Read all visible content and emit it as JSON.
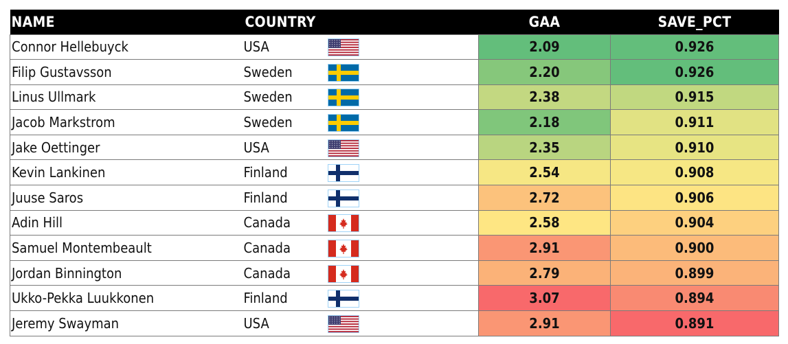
{
  "headers": {
    "name": "NAME",
    "country": "COUNTRY",
    "gaa": "GAA",
    "save_pct": "SAVE_PCT"
  },
  "colors": {
    "header_bg": "#000000",
    "header_text": "#ffffff"
  },
  "rows": [
    {
      "name": "Connor Hellebuyck",
      "country": "USA",
      "flag": "usa-flag-icon",
      "gaa": "2.09",
      "save_pct": "0.926",
      "gaa_color": "#63be7b",
      "save_color": "#63be7b"
    },
    {
      "name": "Filip Gustavsson",
      "country": "Sweden",
      "flag": "sweden-flag-icon",
      "gaa": "2.20",
      "save_pct": "0.926",
      "gaa_color": "#86c77b",
      "save_color": "#63be7b"
    },
    {
      "name": "Linus Ullmark",
      "country": "Sweden",
      "flag": "sweden-flag-icon",
      "gaa": "2.38",
      "save_pct": "0.915",
      "gaa_color": "#c3d881",
      "save_color": "#c1d880"
    },
    {
      "name": "Jacob Markstrom",
      "country": "Sweden",
      "flag": "sweden-flag-icon",
      "gaa": "2.18",
      "save_pct": "0.911",
      "gaa_color": "#80c67b",
      "save_color": "#e1e283"
    },
    {
      "name": "Jake Oettinger",
      "country": "USA",
      "flag": "usa-flag-icon",
      "gaa": "2.35",
      "save_pct": "0.910",
      "gaa_color": "#b9d580",
      "save_color": "#e7e483"
    },
    {
      "name": "Kevin Lankinen",
      "country": "Finland",
      "flag": "finland-flag-icon",
      "gaa": "2.54",
      "save_pct": "0.908",
      "gaa_color": "#f6e784",
      "save_color": "#f6e784"
    },
    {
      "name": "Juuse Saros",
      "country": "Finland",
      "flag": "finland-flag-icon",
      "gaa": "2.72",
      "save_pct": "0.906",
      "gaa_color": "#fcc27c",
      "save_color": "#fde483"
    },
    {
      "name": "Adin Hill",
      "country": "Canada",
      "flag": "canada-flag-icon",
      "gaa": "2.58",
      "save_pct": "0.904",
      "gaa_color": "#fee683",
      "save_color": "#fdd07f"
    },
    {
      "name": "Samuel Montembeault",
      "country": "Canada",
      "flag": "canada-flag-icon",
      "gaa": "2.91",
      "save_pct": "0.900",
      "gaa_color": "#fa9674",
      "save_color": "#fcbb7a"
    },
    {
      "name": "Jordan Binnington",
      "country": "Canada",
      "flag": "canada-flag-icon",
      "gaa": "2.79",
      "save_pct": "0.899",
      "gaa_color": "#fbb278",
      "save_color": "#fbb379"
    },
    {
      "name": "Ukko-Pekka Luukkonen",
      "country": "Finland",
      "flag": "finland-flag-icon",
      "gaa": "3.07",
      "save_pct": "0.894",
      "gaa_color": "#f8696b",
      "save_color": "#f98a72"
    },
    {
      "name": "Jeremy Swayman",
      "country": "USA",
      "flag": "usa-flag-icon",
      "gaa": "2.91",
      "save_pct": "0.891",
      "gaa_color": "#fa9674",
      "save_color": "#f8696b"
    }
  ]
}
